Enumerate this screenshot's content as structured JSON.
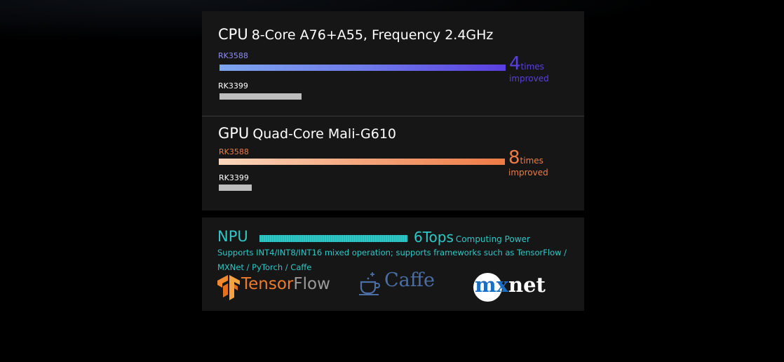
{
  "cpu": {
    "label": "CPU",
    "spec": "8-Core A76+A55, Frequency 2.4GHz",
    "rk3588": "RK3588",
    "rk3399": "RK3399",
    "factor": "4",
    "word1": "times",
    "word2": "improved",
    "accent": "#5a3fe0"
  },
  "gpu": {
    "label": "GPU",
    "spec": "Quad-Core Mali-G610",
    "rk3588": "RK3588",
    "rk3399": "RK3399",
    "factor": "8",
    "word1": "times",
    "word2": "improved",
    "accent": "#ee7b46"
  },
  "npu": {
    "label": "NPU",
    "value": "6Tops",
    "unit": "Computing Power",
    "description": "Supports INT4/INT8/INT16 mixed operation; supports frameworks such as TensorFlow / MXNet / PyTorch / Caffe",
    "accent": "#2ec8c6"
  },
  "logos": {
    "tensorflow_a": "Tensor",
    "tensorflow_b": "Flow",
    "caffe": "Caffe",
    "mxnet_m": "m",
    "mxnet_x": "x",
    "mxnet_net": "net"
  }
}
